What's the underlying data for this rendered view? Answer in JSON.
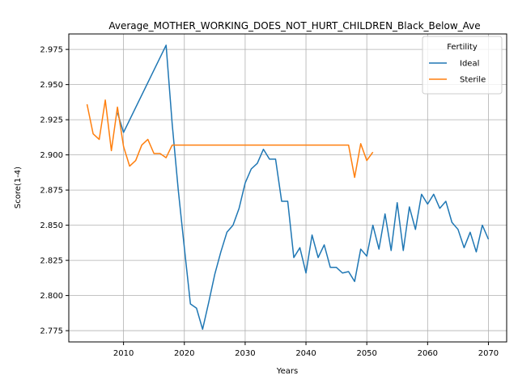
{
  "chart_data": {
    "type": "line",
    "title": "Average_MOTHER_WORKING_DOES_NOT_HURT_CHILDREN_Black_Below_Ave",
    "xlabel": "Years",
    "ylabel": "Score(1-4)",
    "xlim": [
      2001,
      2073
    ],
    "ylim": [
      2.767,
      2.986
    ],
    "grid": true,
    "legend_placement": "top-right",
    "legend_title": "Fertility",
    "x_ticks": [
      2010,
      2020,
      2030,
      2040,
      2050,
      2060,
      2070
    ],
    "y_ticks": [
      2.775,
      2.8,
      2.825,
      2.85,
      2.875,
      2.9,
      2.925,
      2.95,
      2.975
    ],
    "series": [
      {
        "name": "Ideal",
        "color": "#1f77b4",
        "x": [
          2009,
          2010,
          2017,
          2018,
          2019,
          2020,
          2021,
          2022,
          2023,
          2024,
          2025,
          2026,
          2027,
          2028,
          2029,
          2030,
          2031,
          2032,
          2033,
          2034,
          2035,
          2036,
          2037,
          2038,
          2039,
          2040,
          2041,
          2042,
          2043,
          2044,
          2045,
          2046,
          2047,
          2048,
          2049,
          2050,
          2051,
          2052,
          2053,
          2054,
          2055,
          2056,
          2057,
          2058,
          2059,
          2060,
          2061,
          2062,
          2063,
          2064,
          2065,
          2066,
          2067,
          2068,
          2069,
          2070
        ],
        "values": [
          2.93,
          2.916,
          2.978,
          2.922,
          2.875,
          2.834,
          2.794,
          2.791,
          2.776,
          2.795,
          2.815,
          2.831,
          2.845,
          2.85,
          2.862,
          2.88,
          2.89,
          2.894,
          2.904,
          2.897,
          2.897,
          2.867,
          2.867,
          2.827,
          2.834,
          2.816,
          2.843,
          2.827,
          2.836,
          2.82,
          2.82,
          2.816,
          2.817,
          2.81,
          2.833,
          2.828,
          2.85,
          2.833,
          2.858,
          2.832,
          2.866,
          2.832,
          2.863,
          2.847,
          2.872,
          2.865,
          2.872,
          2.862,
          2.867,
          2.852,
          2.847,
          2.834,
          2.845,
          2.831,
          2.85,
          2.84
        ]
      },
      {
        "name": "Sterile",
        "color": "#ff7f0e",
        "x": [
          2004,
          2005,
          2006,
          2007,
          2008,
          2009,
          2010,
          2011,
          2012,
          2013,
          2014,
          2015,
          2016,
          2017,
          2018,
          2019,
          2020,
          2030,
          2040,
          2047,
          2048,
          2049,
          2050,
          2051
        ],
        "values": [
          2.936,
          2.915,
          2.911,
          2.939,
          2.903,
          2.934,
          2.906,
          2.892,
          2.896,
          2.907,
          2.911,
          2.901,
          2.901,
          2.898,
          2.907,
          2.907,
          2.907,
          2.907,
          2.907,
          2.907,
          2.884,
          2.908,
          2.896,
          2.902
        ]
      }
    ]
  }
}
